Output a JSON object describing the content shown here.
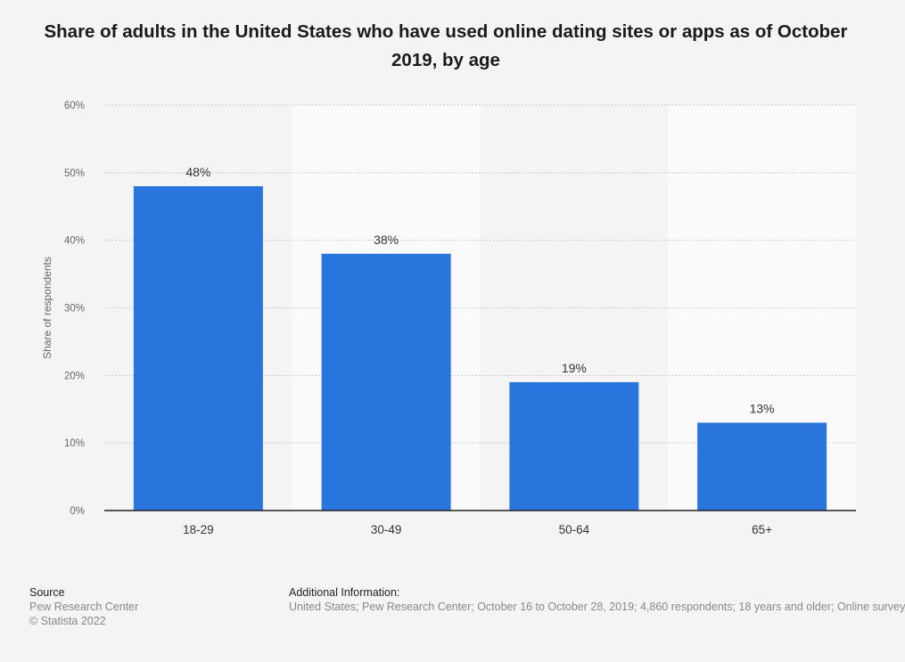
{
  "chart_data": {
    "type": "bar",
    "title": "Share of adults in the United States who have used online dating sites or apps as of October 2019, by age",
    "categories": [
      "18-29",
      "30-49",
      "50-64",
      "65+"
    ],
    "values": [
      48,
      38,
      19,
      13
    ],
    "value_labels": [
      "48%",
      "38%",
      "19%",
      "13%"
    ],
    "ylabel": "Share of respondents",
    "ylim": [
      0,
      60
    ],
    "yticks": [
      0,
      10,
      20,
      30,
      40,
      50,
      60
    ],
    "ytick_labels": [
      "0%",
      "10%",
      "20%",
      "30%",
      "40%",
      "50%",
      "60%"
    ],
    "grid": true,
    "bar_color": "#2876dd"
  },
  "footer": {
    "source_heading": "Source",
    "source_line1": "Pew Research Center",
    "source_line2": "© Statista 2022",
    "info_heading": "Additional Information:",
    "info_text": "United States; Pew Research Center; October 16 to October 28, 2019; 4,860 respondents; 18 years and older; Online survey"
  }
}
